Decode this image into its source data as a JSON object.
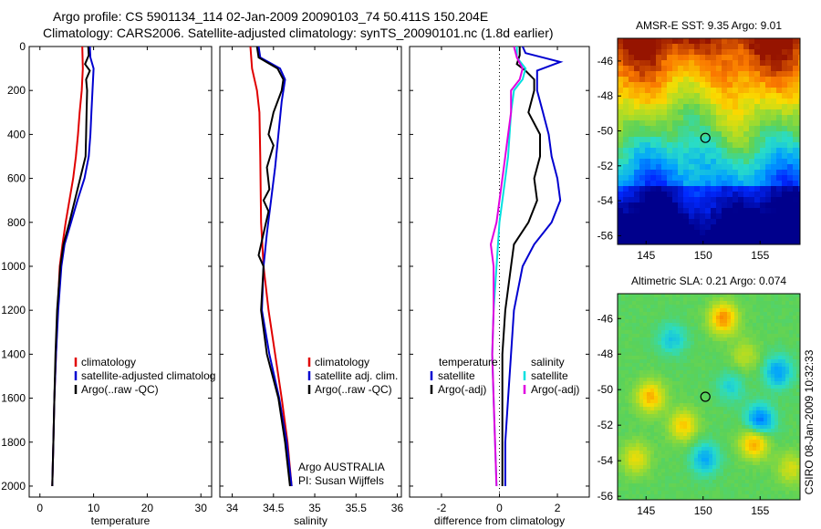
{
  "figure": {
    "title_line1": "Argo profile: CS 5901134_114 02-Jan-2009 20090103_74 50.411S 150.204E",
    "title_line2": "Climatology: CARS2006. Satellite-adjusted climatology: synTS_20090101.nc (1.8d earlier)",
    "credit": "Argo AUSTRALIA",
    "pi": "PI: Susan Wijffels",
    "timestamp": "CSIRO 08-Jan-2009 10:32:33"
  },
  "colors": {
    "climatology": "#e00000",
    "satellite": "#0000d0",
    "argo": "#000000",
    "sal_satellite": "#00e0e0",
    "sal_argo": "#e000e0"
  },
  "chart_data": [
    {
      "id": "temperature",
      "type": "line",
      "xlabel": "temperature",
      "ylabel": "",
      "xlim": [
        -2,
        32
      ],
      "ylim": [
        2050,
        0
      ],
      "xticks": [
        0,
        10,
        20,
        30
      ],
      "yticks": [
        0,
        200,
        400,
        600,
        800,
        1000,
        1200,
        1400,
        1600,
        1800,
        2000
      ],
      "legend": [
        "climatology",
        "satellite-adjusted climatolog",
        "Argo(..raw -QC)"
      ],
      "series": [
        {
          "name": "climatology",
          "color": "#e00000",
          "points": [
            [
              7.9,
              0
            ],
            [
              8.0,
              100
            ],
            [
              7.8,
              200
            ],
            [
              7.4,
              300
            ],
            [
              7.1,
              400
            ],
            [
              6.7,
              500
            ],
            [
              6.2,
              600
            ],
            [
              5.5,
              700
            ],
            [
              4.8,
              800
            ],
            [
              4.2,
              900
            ],
            [
              3.7,
              1000
            ],
            [
              3.3,
              1200
            ],
            [
              3.0,
              1400
            ],
            [
              2.7,
              1600
            ],
            [
              2.5,
              1800
            ],
            [
              2.3,
              2000
            ]
          ]
        },
        {
          "name": "satellite-adjusted climatolog",
          "color": "#0000d0",
          "points": [
            [
              9.3,
              0
            ],
            [
              9.4,
              50
            ],
            [
              10.0,
              100
            ],
            [
              9.8,
              200
            ],
            [
              9.6,
              300
            ],
            [
              9.4,
              400
            ],
            [
              9.1,
              500
            ],
            [
              8.3,
              600
            ],
            [
              7.0,
              700
            ],
            [
              5.8,
              800
            ],
            [
              4.6,
              900
            ],
            [
              4.0,
              1000
            ],
            [
              3.4,
              1200
            ],
            [
              3.0,
              1400
            ],
            [
              2.7,
              1600
            ],
            [
              2.5,
              1800
            ],
            [
              2.3,
              2000
            ]
          ]
        },
        {
          "name": "Argo(..raw -QC)",
          "color": "#000000",
          "points": [
            [
              9.0,
              0
            ],
            [
              9.1,
              40
            ],
            [
              8.4,
              80
            ],
            [
              9.3,
              110
            ],
            [
              8.6,
              150
            ],
            [
              8.8,
              200
            ],
            [
              8.7,
              300
            ],
            [
              8.6,
              400
            ],
            [
              8.5,
              500
            ],
            [
              7.5,
              600
            ],
            [
              6.5,
              700
            ],
            [
              5.5,
              800
            ],
            [
              4.4,
              900
            ],
            [
              3.8,
              1000
            ],
            [
              3.2,
              1200
            ],
            [
              2.9,
              1400
            ],
            [
              2.7,
              1600
            ],
            [
              2.5,
              1800
            ],
            [
              2.3,
              2000
            ]
          ]
        }
      ]
    },
    {
      "id": "salinity",
      "type": "line",
      "xlabel": "salinity",
      "ylabel": "",
      "xlim": [
        33.85,
        36.05
      ],
      "ylim": [
        2050,
        0
      ],
      "xticks": [
        34,
        34.5,
        35,
        35.5,
        36
      ],
      "xticklabels": [
        "34",
        "34.5",
        "35",
        "35.5",
        "36"
      ],
      "legend": [
        "climatology",
        "satellite adj. clim.",
        "Argo(..raw -QC)"
      ],
      "series": [
        {
          "name": "climatology",
          "color": "#e00000",
          "points": [
            [
              34.22,
              0
            ],
            [
              34.24,
              100
            ],
            [
              34.3,
              200
            ],
            [
              34.33,
              300
            ],
            [
              34.34,
              500
            ],
            [
              34.35,
              800
            ],
            [
              34.38,
              1000
            ],
            [
              34.44,
              1200
            ],
            [
              34.52,
              1400
            ],
            [
              34.6,
              1600
            ],
            [
              34.67,
              1800
            ],
            [
              34.72,
              2000
            ]
          ]
        },
        {
          "name": "satellite adj. clim.",
          "color": "#0000d0",
          "points": [
            [
              34.32,
              0
            ],
            [
              34.34,
              50
            ],
            [
              34.58,
              100
            ],
            [
              34.64,
              150
            ],
            [
              34.6,
              250
            ],
            [
              34.56,
              400
            ],
            [
              34.52,
              550
            ],
            [
              34.47,
              700
            ],
            [
              34.42,
              850
            ],
            [
              34.38,
              1000
            ],
            [
              34.36,
              1200
            ],
            [
              34.45,
              1400
            ],
            [
              34.57,
              1600
            ],
            [
              34.66,
              1800
            ],
            [
              34.72,
              2000
            ]
          ]
        },
        {
          "name": "Argo(..raw -QC)",
          "color": "#000000",
          "points": [
            [
              34.3,
              0
            ],
            [
              34.32,
              50
            ],
            [
              34.55,
              100
            ],
            [
              34.62,
              150
            ],
            [
              34.6,
              200
            ],
            [
              34.5,
              300
            ],
            [
              34.44,
              400
            ],
            [
              34.5,
              450
            ],
            [
              34.42,
              550
            ],
            [
              34.45,
              650
            ],
            [
              34.38,
              700
            ],
            [
              34.44,
              750
            ],
            [
              34.38,
              850
            ],
            [
              34.32,
              950
            ],
            [
              34.38,
              1000
            ],
            [
              34.35,
              1200
            ],
            [
              34.42,
              1400
            ],
            [
              34.56,
              1600
            ],
            [
              34.64,
              1800
            ],
            [
              34.7,
              2000
            ]
          ]
        }
      ],
      "annotations": [
        "Argo AUSTRALIA",
        "PI: Susan Wijffels"
      ]
    },
    {
      "id": "difference",
      "type": "line",
      "xlabel": "difference from climatology",
      "ylabel": "",
      "xlim": [
        -3.1,
        3.1
      ],
      "ylim": [
        2050,
        0
      ],
      "xticks": [
        -2,
        0,
        2
      ],
      "zero_line": "dotted",
      "legend": [
        "temperature",
        "satellite",
        "Argo(-adj)",
        "salinity",
        "satellite",
        "Argo(-adj)"
      ],
      "series": [
        {
          "name": "temperature satellite",
          "color": "#0000d0",
          "points": [
            [
              0.8,
              0
            ],
            [
              0.9,
              30
            ],
            [
              2.1,
              70
            ],
            [
              1.3,
              110
            ],
            [
              1.3,
              200
            ],
            [
              1.5,
              300
            ],
            [
              1.7,
              400
            ],
            [
              1.8,
              500
            ],
            [
              2.0,
              600
            ],
            [
              2.1,
              700
            ],
            [
              1.8,
              800
            ],
            [
              1.2,
              900
            ],
            [
              0.8,
              1000
            ],
            [
              0.5,
              1200
            ],
            [
              0.4,
              1400
            ],
            [
              0.3,
              1600
            ],
            [
              0.2,
              1800
            ],
            [
              0.2,
              2000
            ]
          ]
        },
        {
          "name": "temperature Argo(-adj)",
          "color": "#000000",
          "points": [
            [
              0.7,
              0
            ],
            [
              0.7,
              40
            ],
            [
              0.6,
              80
            ],
            [
              0.9,
              110
            ],
            [
              1.2,
              150
            ],
            [
              1.2,
              200
            ],
            [
              1.0,
              300
            ],
            [
              1.4,
              400
            ],
            [
              1.4,
              500
            ],
            [
              1.2,
              600
            ],
            [
              1.3,
              700
            ],
            [
              1.0,
              800
            ],
            [
              0.5,
              900
            ],
            [
              0.4,
              1000
            ],
            [
              0.2,
              1200
            ],
            [
              0.1,
              1400
            ],
            [
              0.1,
              1600
            ],
            [
              0.1,
              1800
            ],
            [
              0.1,
              2000
            ]
          ]
        },
        {
          "name": "salinity satellite",
          "color": "#00e0e0",
          "points": [
            [
              0.6,
              0
            ],
            [
              0.6,
              50
            ],
            [
              0.9,
              100
            ],
            [
              0.8,
              150
            ],
            [
              0.5,
              200
            ],
            [
              0.4,
              300
            ],
            [
              0.35,
              400
            ],
            [
              0.3,
              500
            ],
            [
              0.2,
              600
            ],
            [
              0.1,
              700
            ],
            [
              0.0,
              800
            ],
            [
              -0.1,
              1000
            ],
            [
              -0.2,
              1200
            ],
            [
              -0.25,
              1400
            ],
            [
              -0.2,
              1600
            ],
            [
              -0.15,
              1800
            ],
            [
              -0.1,
              2000
            ]
          ]
        },
        {
          "name": "salinity Argo(-adj)",
          "color": "#e000e0",
          "points": [
            [
              0.5,
              0
            ],
            [
              0.6,
              50
            ],
            [
              0.8,
              100
            ],
            [
              0.7,
              150
            ],
            [
              0.4,
              200
            ],
            [
              0.4,
              300
            ],
            [
              0.3,
              400
            ],
            [
              0.2,
              500
            ],
            [
              0.1,
              600
            ],
            [
              0.0,
              700
            ],
            [
              -0.1,
              800
            ],
            [
              -0.3,
              900
            ],
            [
              -0.2,
              1000
            ],
            [
              -0.2,
              1200
            ],
            [
              -0.25,
              1400
            ],
            [
              -0.2,
              1600
            ],
            [
              -0.15,
              1800
            ],
            [
              -0.1,
              2000
            ]
          ]
        }
      ]
    },
    {
      "id": "sst_map",
      "type": "heatmap",
      "title": "AMSR-E SST: 9.35 Argo: 9.01",
      "xlim": [
        142.5,
        158.5
      ],
      "ylim": [
        -56.5,
        -44.7
      ],
      "xticks": [
        145,
        150,
        155
      ],
      "yticks": [
        -46,
        -48,
        -50,
        -52,
        -54,
        -56
      ],
      "marker": [
        150.2,
        -50.4
      ]
    },
    {
      "id": "sla_map",
      "type": "heatmap",
      "title": "Altimetric SLA: 0.21 Argo: 0.074",
      "xlim": [
        142.5,
        158.5
      ],
      "ylim": [
        -56.2,
        -44.6
      ],
      "xticks": [
        145,
        150,
        155
      ],
      "yticks": [
        -46,
        -48,
        -50,
        -52,
        -54,
        -56
      ],
      "marker": [
        150.2,
        -50.4
      ]
    }
  ]
}
